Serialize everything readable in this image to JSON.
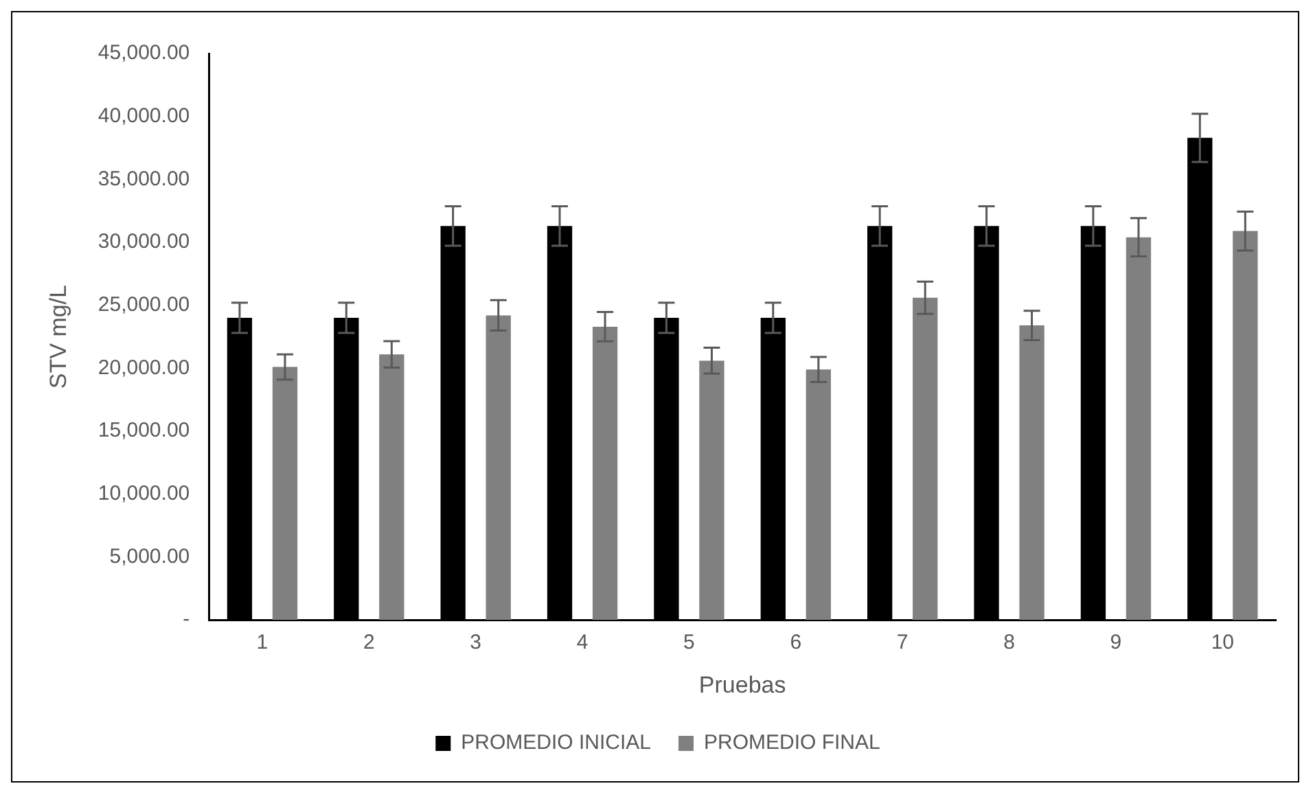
{
  "chart_data": {
    "type": "bar",
    "xlabel": "Pruebas",
    "ylabel": "STV mg/L",
    "categories": [
      "1",
      "2",
      "3",
      "4",
      "5",
      "6",
      "7",
      "8",
      "9",
      "10"
    ],
    "series": [
      {
        "name": "PROMEDIO INICIAL",
        "color": "#000000",
        "values": [
          24000,
          24000,
          31300,
          31300,
          24000,
          24000,
          31300,
          31300,
          31300,
          38300
        ],
        "errors": [
          1200,
          1200,
          1565,
          1565,
          1200,
          1200,
          1565,
          1565,
          1565,
          1915
        ]
      },
      {
        "name": "PROMEDIO FINAL",
        "color": "#808080",
        "values": [
          20100,
          21100,
          24200,
          23300,
          20600,
          19900,
          25600,
          23400,
          30400,
          30900
        ],
        "errors": [
          1005,
          1055,
          1210,
          1165,
          1030,
          995,
          1280,
          1170,
          1520,
          1545
        ]
      }
    ],
    "ylim": [
      0,
      45000
    ],
    "yticks": [
      {
        "value": 0,
        "label": "-"
      },
      {
        "value": 5000,
        "label": "5,000.00"
      },
      {
        "value": 10000,
        "label": "10,000.00"
      },
      {
        "value": 15000,
        "label": "15,000.00"
      },
      {
        "value": 20000,
        "label": "20,000.00"
      },
      {
        "value": 25000,
        "label": "25,000.00"
      },
      {
        "value": 30000,
        "label": "30,000.00"
      },
      {
        "value": 35000,
        "label": "35,000.00"
      },
      {
        "value": 40000,
        "label": "40,000.00"
      },
      {
        "value": 45000,
        "label": "45,000.00"
      }
    ],
    "grid": false,
    "legend": "bottom"
  }
}
